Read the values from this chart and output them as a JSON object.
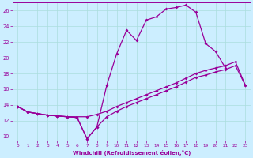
{
  "xlabel": "Windchill (Refroidissement éolien,°C)",
  "bg_color": "#cceeff",
  "grid_color": "#aadddd",
  "line_color": "#990099",
  "xlim": [
    -0.5,
    23.5
  ],
  "ylim": [
    9.5,
    27
  ],
  "xticks": [
    0,
    1,
    2,
    3,
    4,
    5,
    6,
    7,
    8,
    9,
    10,
    11,
    12,
    13,
    14,
    15,
    16,
    17,
    18,
    19,
    20,
    21,
    22,
    23
  ],
  "yticks": [
    10,
    12,
    14,
    16,
    18,
    20,
    22,
    24,
    26
  ],
  "hours": [
    0,
    1,
    2,
    3,
    4,
    5,
    6,
    7,
    8,
    9,
    10,
    11,
    12,
    13,
    14,
    15,
    16,
    17,
    18,
    19,
    20,
    21,
    22,
    23
  ],
  "curve1": [
    13.8,
    13.1,
    12.9,
    12.7,
    12.6,
    12.5,
    12.4,
    9.7,
    11.2,
    16.5,
    20.5,
    23.5,
    22.2,
    24.8,
    25.2,
    26.2,
    26.4,
    26.7,
    25.8,
    21.8,
    20.8,
    18.7,
    null,
    null
  ],
  "curve2": [
    13.8,
    13.1,
    12.9,
    12.7,
    12.6,
    12.5,
    12.5,
    12.5,
    12.8,
    13.2,
    13.8,
    14.3,
    14.8,
    15.3,
    15.8,
    16.3,
    16.8,
    17.4,
    18.0,
    18.4,
    18.7,
    19.0,
    19.5,
    16.5
  ],
  "curve3": [
    13.8,
    13.1,
    12.9,
    12.7,
    12.6,
    12.5,
    12.4,
    9.7,
    11.2,
    12.5,
    13.2,
    13.8,
    14.3,
    14.8,
    15.3,
    15.8,
    16.3,
    16.9,
    17.5,
    17.8,
    18.2,
    18.5,
    19.0,
    16.5
  ]
}
